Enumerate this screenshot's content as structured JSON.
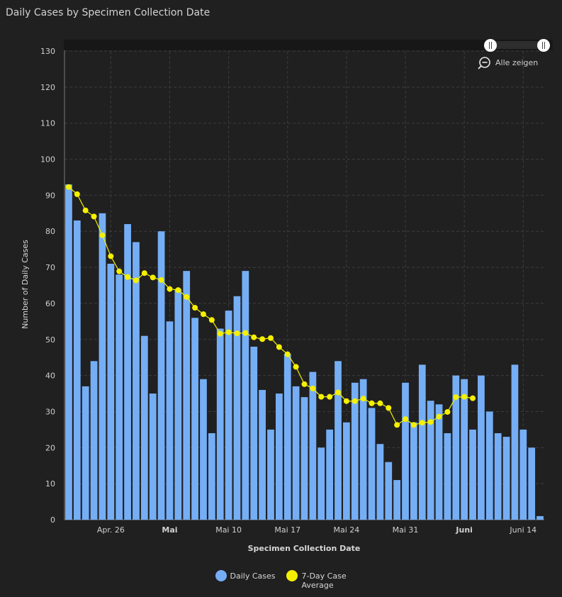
{
  "title": "Daily Cases by Specimen Collection Date",
  "zoom": {
    "label": "Alle zeigen",
    "icon": "zoom-out-icon"
  },
  "colors": {
    "bars": "#75aef5",
    "line": "#f5f000",
    "background": "#202020"
  },
  "chart_data": {
    "type": "bar",
    "title": "Daily Cases by Specimen Collection Date",
    "xlabel": "Specimen Collection Date",
    "ylabel": "Number of Daily Cases",
    "ylim": [
      0,
      130
    ],
    "yticks": [
      0,
      10,
      20,
      30,
      40,
      50,
      60,
      70,
      80,
      90,
      100,
      110,
      120,
      130
    ],
    "grid": true,
    "legend_position": "bottom",
    "xticks": [
      {
        "index": 5,
        "label": "Apr. 26",
        "bold": false
      },
      {
        "index": 12,
        "label": "Mai",
        "bold": true
      },
      {
        "index": 19,
        "label": "Mai 10",
        "bold": false
      },
      {
        "index": 26,
        "label": "Mai 17",
        "bold": false
      },
      {
        "index": 33,
        "label": "Mai 24",
        "bold": false
      },
      {
        "index": 40,
        "label": "Mai 31",
        "bold": false
      },
      {
        "index": 47,
        "label": "Juni",
        "bold": true
      },
      {
        "index": 54,
        "label": "Juni 14",
        "bold": false
      }
    ],
    "series": [
      {
        "name": "Daily Cases",
        "type": "bar",
        "values": [
          93,
          83,
          37,
          44,
          85,
          71,
          68,
          82,
          77,
          51,
          35,
          80,
          55,
          64,
          69,
          56,
          39,
          24,
          53,
          58,
          62,
          69,
          48,
          36,
          25,
          35,
          46,
          37,
          34,
          41,
          20,
          25,
          44,
          27,
          38,
          39,
          31,
          21,
          16,
          11,
          38,
          27,
          43,
          33,
          32,
          24,
          40,
          39,
          25,
          40,
          30,
          24,
          23,
          43,
          25,
          20,
          1
        ]
      },
      {
        "name": "7-Day Case Average",
        "type": "line",
        "values": [
          92.3,
          90.3,
          85.8,
          84.1,
          78.9,
          73.1,
          68.9,
          67.3,
          66.4,
          68.4,
          67.2,
          66.5,
          64.0,
          63.7,
          61.8,
          58.8,
          57.0,
          55.4,
          51.6,
          52.0,
          51.7,
          51.8,
          50.6,
          50.1,
          50.4,
          47.9,
          45.9,
          42.4,
          37.6,
          36.4,
          34.1,
          34.1,
          35.3,
          32.9,
          32.9,
          33.6,
          32.3,
          32.3,
          31.0,
          26.3,
          27.9,
          26.3,
          26.9,
          27.1,
          28.6,
          29.9,
          34.0,
          34.1,
          33.7
        ]
      }
    ]
  }
}
